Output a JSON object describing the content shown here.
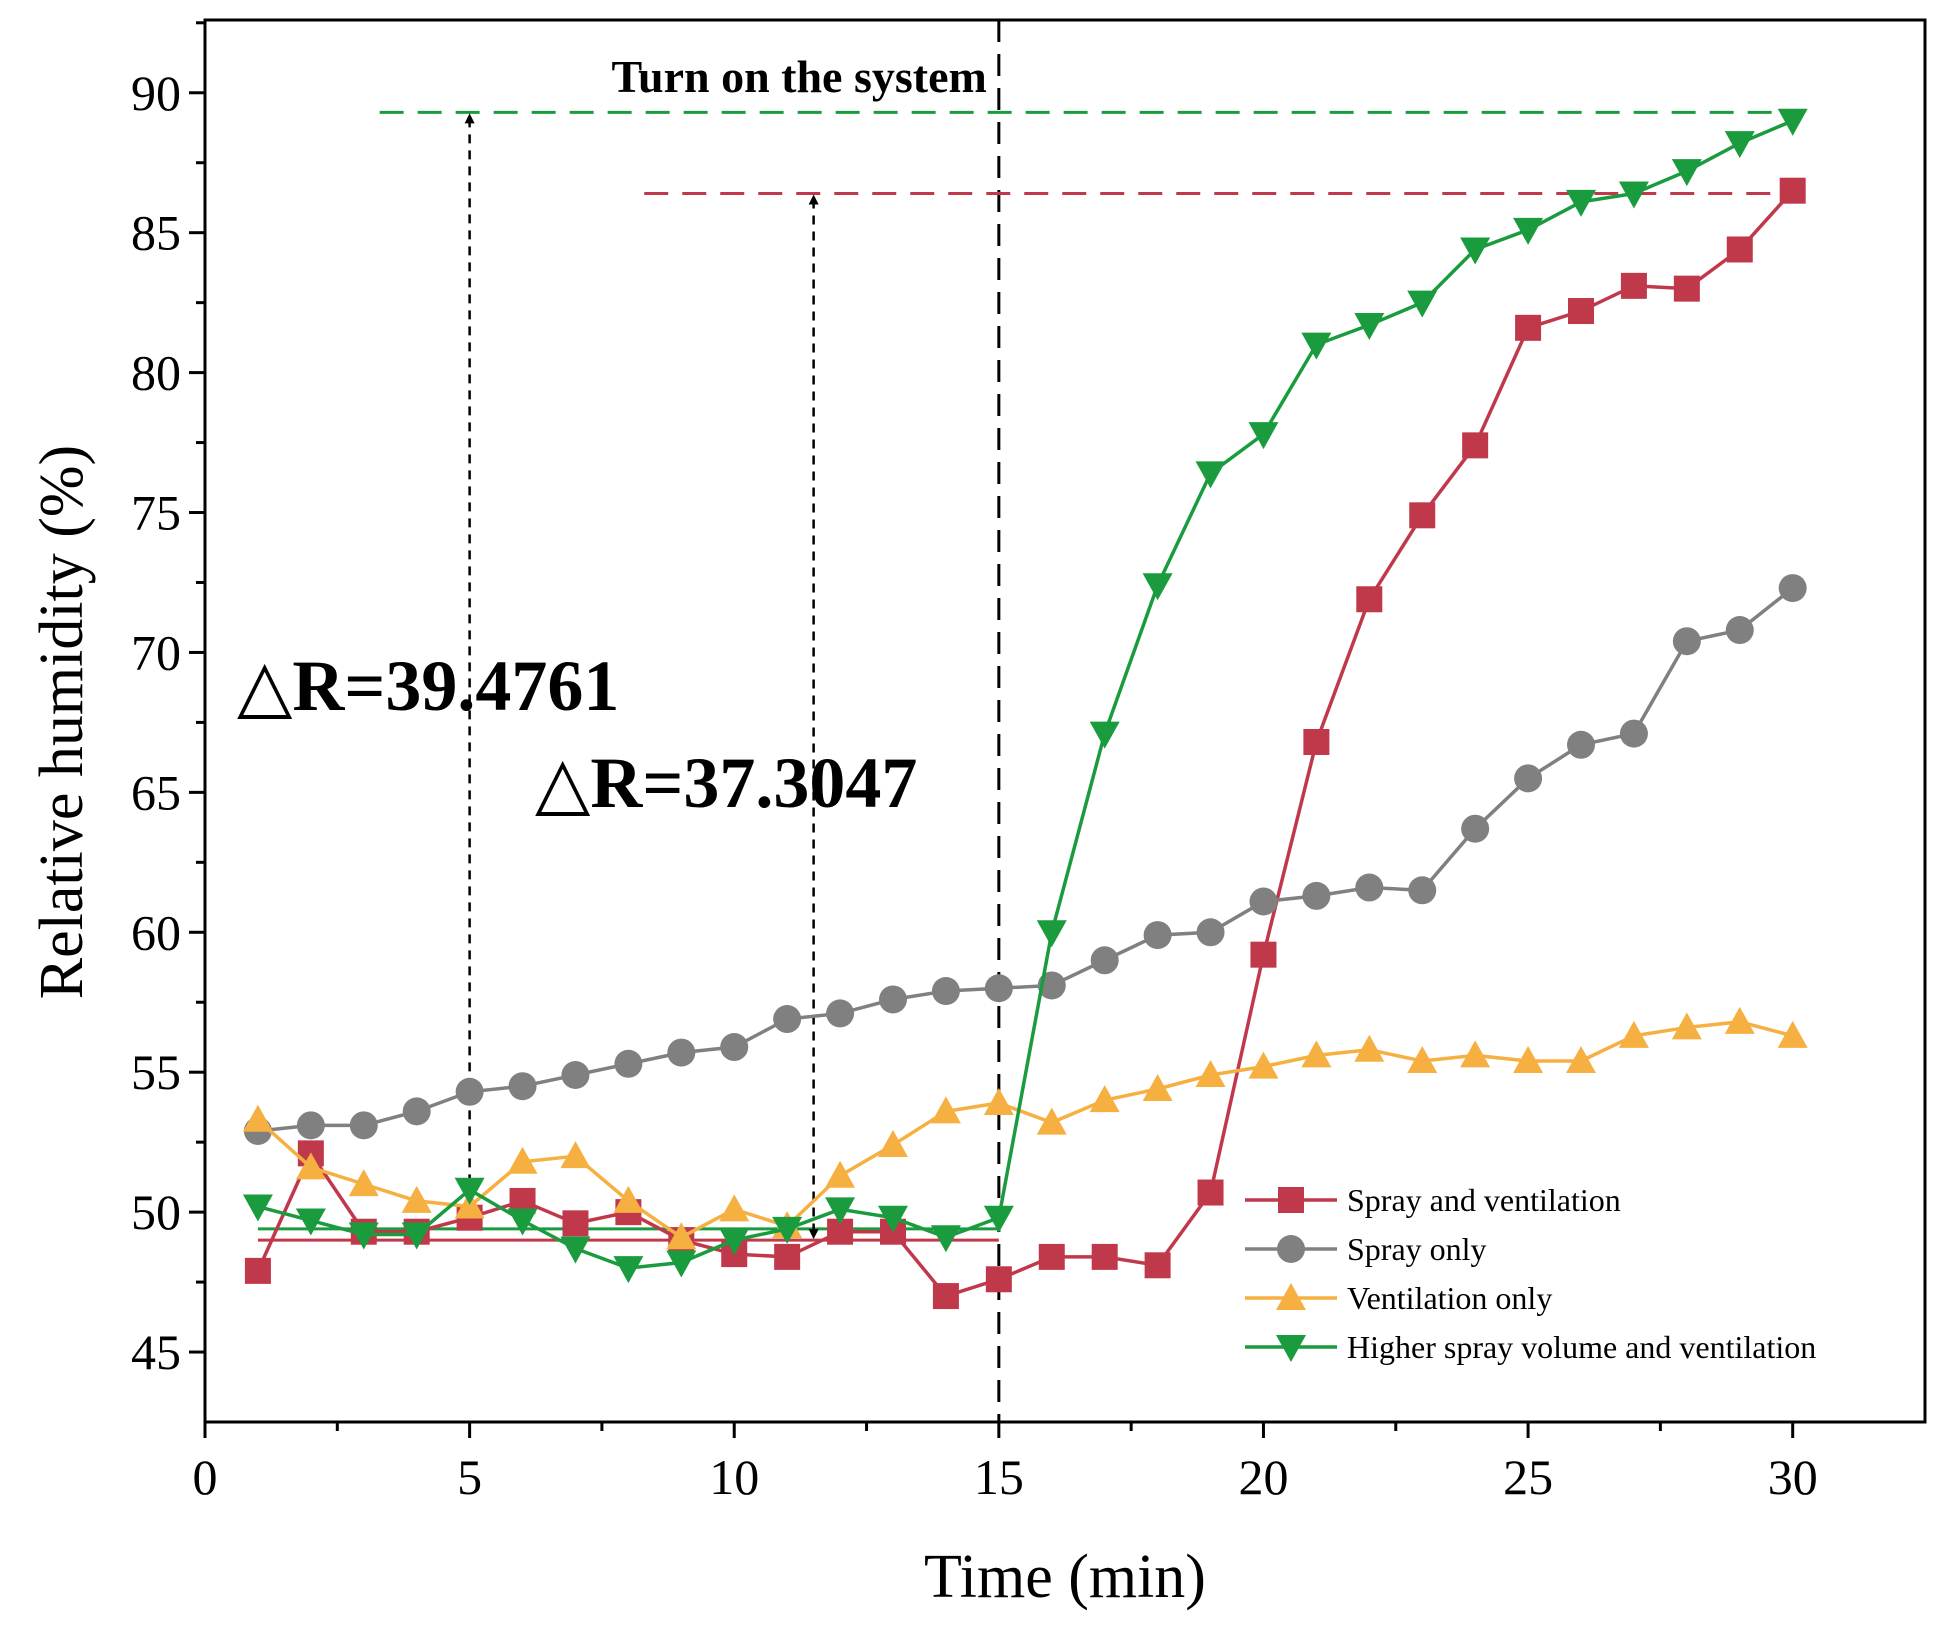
{
  "chart_data": {
    "type": "line",
    "xlabel": "Time (min)",
    "ylabel": "Relative humidity (%)",
    "xlim": [
      0,
      32.5
    ],
    "ylim": [
      42.5,
      92.6
    ],
    "xticks": [
      0,
      5,
      10,
      15,
      20,
      25,
      30
    ],
    "yticks": [
      45,
      50,
      55,
      60,
      65,
      70,
      75,
      80,
      85,
      90
    ],
    "legend_position": "bottom-right",
    "x": [
      1,
      2,
      3,
      4,
      5,
      6,
      7,
      8,
      9,
      10,
      11,
      12,
      13,
      14,
      15,
      16,
      17,
      18,
      19,
      20,
      21,
      22,
      23,
      24,
      25,
      26,
      27,
      28,
      29,
      30
    ],
    "series": [
      {
        "name": "Spray and ventilation",
        "color": "#c0394b",
        "marker": "square",
        "values": [
          47.9,
          52.1,
          49.3,
          49.3,
          49.8,
          50.4,
          49.6,
          50.0,
          49.0,
          48.5,
          48.4,
          49.3,
          49.3,
          47.0,
          47.6,
          48.4,
          48.4,
          48.1,
          50.7,
          59.2,
          66.8,
          71.9,
          74.9,
          77.4,
          81.6,
          82.2,
          83.1,
          83.0,
          84.4,
          86.5
        ]
      },
      {
        "name": "Spray only",
        "color": "#808080",
        "marker": "circle",
        "values": [
          52.9,
          53.1,
          53.1,
          53.6,
          54.3,
          54.5,
          54.9,
          55.3,
          55.7,
          55.9,
          56.9,
          57.1,
          57.6,
          57.9,
          58.0,
          58.1,
          59.0,
          59.9,
          60.0,
          61.1,
          61.3,
          61.6,
          61.5,
          63.7,
          65.5,
          66.7,
          67.1,
          70.4,
          70.8,
          72.3
        ]
      },
      {
        "name": "Ventilation only",
        "color": "#f5b041",
        "marker": "triangle-up",
        "values": [
          53.3,
          51.6,
          51.0,
          50.4,
          50.2,
          51.8,
          52.0,
          50.4,
          49.1,
          50.1,
          49.5,
          51.3,
          52.4,
          53.6,
          53.9,
          53.2,
          54.0,
          54.4,
          54.9,
          55.2,
          55.6,
          55.8,
          55.4,
          55.6,
          55.4,
          55.4,
          56.3,
          56.6,
          56.8,
          56.3
        ]
      },
      {
        "name": "Higher spray volume and ventilation",
        "color": "#1a9c3e",
        "marker": "triangle-down",
        "values": [
          50.2,
          49.7,
          49.2,
          49.2,
          50.8,
          49.7,
          48.7,
          48.0,
          48.2,
          49.0,
          49.4,
          50.1,
          49.8,
          49.1,
          49.8,
          60.0,
          67.1,
          72.4,
          76.4,
          77.8,
          81.0,
          81.7,
          82.5,
          84.4,
          85.1,
          86.1,
          86.4,
          87.2,
          88.2,
          89.0
        ]
      }
    ],
    "annotations": {
      "event_label": "Turn on the system",
      "event_x": 15,
      "delta_green_label": "△R=39.4761",
      "delta_red_label": "△R=37.3047",
      "green_ref_top": 89.3,
      "red_ref_top": 86.4,
      "green_baseline": 49.4,
      "red_baseline": 49.0,
      "green_arrow_x": 5,
      "red_arrow_x": 11.5
    }
  }
}
